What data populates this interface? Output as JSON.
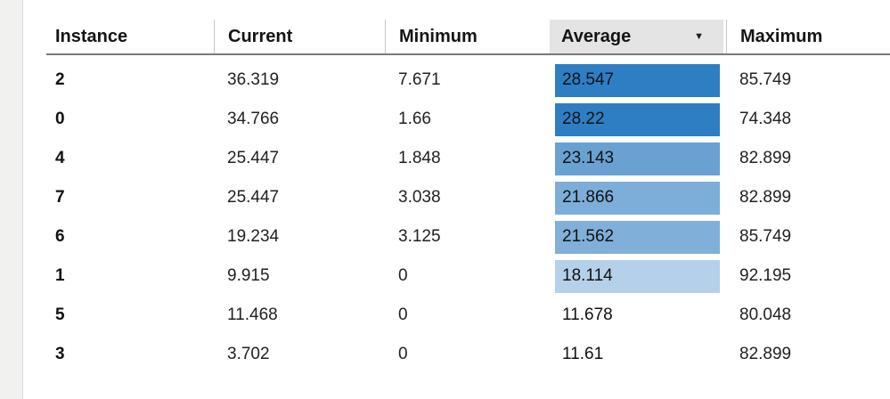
{
  "panel": {
    "left_gutter": true
  },
  "colors": {
    "heat_level_1": "#2e7ec4",
    "heat_level_2": "#69a1d3",
    "heat_level_3": "#7caed9",
    "heat_level_4": "#80b0d9",
    "heat_level_5": "#b5d1e9",
    "header_chip_bg": "#e4e4e4",
    "header_underline": "#7a7a7a",
    "column_separator": "#c8c8c8"
  },
  "table": {
    "columns": {
      "instance": "Instance",
      "current": "Current",
      "minimum": "Minimum",
      "average": "Average",
      "maximum": "Maximum"
    },
    "sort": {
      "column": "Average",
      "direction": "descending",
      "caret_glyph": "▼"
    },
    "rows": [
      {
        "instance": "2",
        "current": "36.319",
        "minimum": "7.671",
        "average": "28.547",
        "maximum": "85.749",
        "heat": "#2e7ec4"
      },
      {
        "instance": "0",
        "current": "34.766",
        "minimum": "1.66",
        "average": "28.22",
        "maximum": "74.348",
        "heat": "#2e7ec4"
      },
      {
        "instance": "4",
        "current": "25.447",
        "minimum": "1.848",
        "average": "23.143",
        "maximum": "82.899",
        "heat": "#69a1d3"
      },
      {
        "instance": "7",
        "current": "25.447",
        "minimum": "3.038",
        "average": "21.866",
        "maximum": "82.899",
        "heat": "#7caed9"
      },
      {
        "instance": "6",
        "current": "19.234",
        "minimum": "3.125",
        "average": "21.562",
        "maximum": "85.749",
        "heat": "#80b0d9"
      },
      {
        "instance": "1",
        "current": "9.915",
        "minimum": "0",
        "average": "18.114",
        "maximum": "92.195",
        "heat": "#b5d1e9"
      },
      {
        "instance": "5",
        "current": "11.468",
        "minimum": "0",
        "average": "11.678",
        "maximum": "80.048",
        "heat": "transparent"
      },
      {
        "instance": "3",
        "current": "3.702",
        "minimum": "0",
        "average": "11.61",
        "maximum": "82.899",
        "heat": "transparent"
      }
    ]
  }
}
